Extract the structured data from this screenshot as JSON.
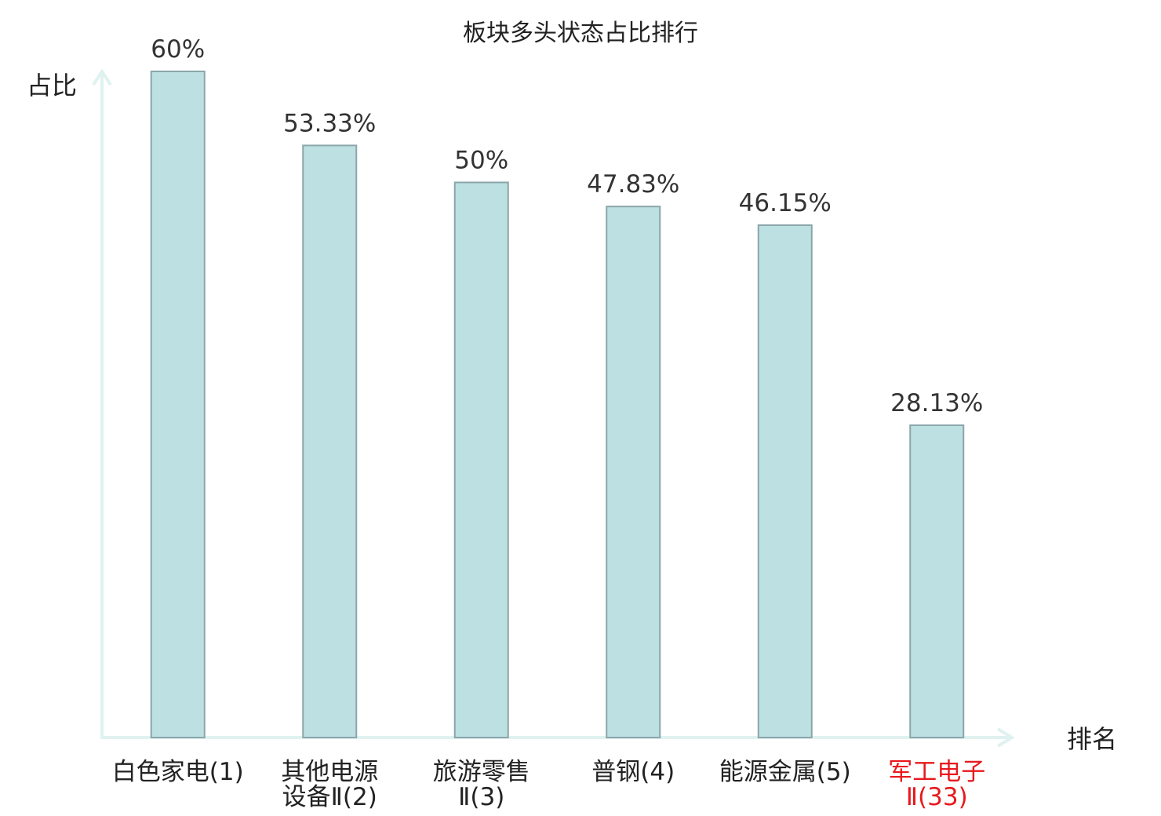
{
  "chart_data": {
    "type": "bar",
    "title": "板块多头状态占比排行",
    "ylabel": "占比",
    "xlabel": "排名",
    "ylim": [
      0,
      60
    ],
    "categories": [
      [
        "白色家电(1)"
      ],
      [
        "其他电源",
        "设备Ⅱ(2)"
      ],
      [
        "旅游零售",
        "Ⅱ(3)"
      ],
      [
        "普钢(4)"
      ],
      [
        "能源金属(5)"
      ],
      [
        "军工电子",
        "Ⅱ(33)"
      ]
    ],
    "values": [
      60,
      53.33,
      50,
      47.83,
      46.15,
      28.13
    ],
    "value_labels": [
      "60%",
      "53.33%",
      "50%",
      "47.83%",
      "46.15%",
      "28.13%"
    ],
    "highlight_index": 5,
    "colors": {
      "bar_fill": "#bde0e3",
      "bar_stroke": "#8ba6aa",
      "axis": "#e0f2f0",
      "highlight_text": "#e8191d"
    }
  }
}
